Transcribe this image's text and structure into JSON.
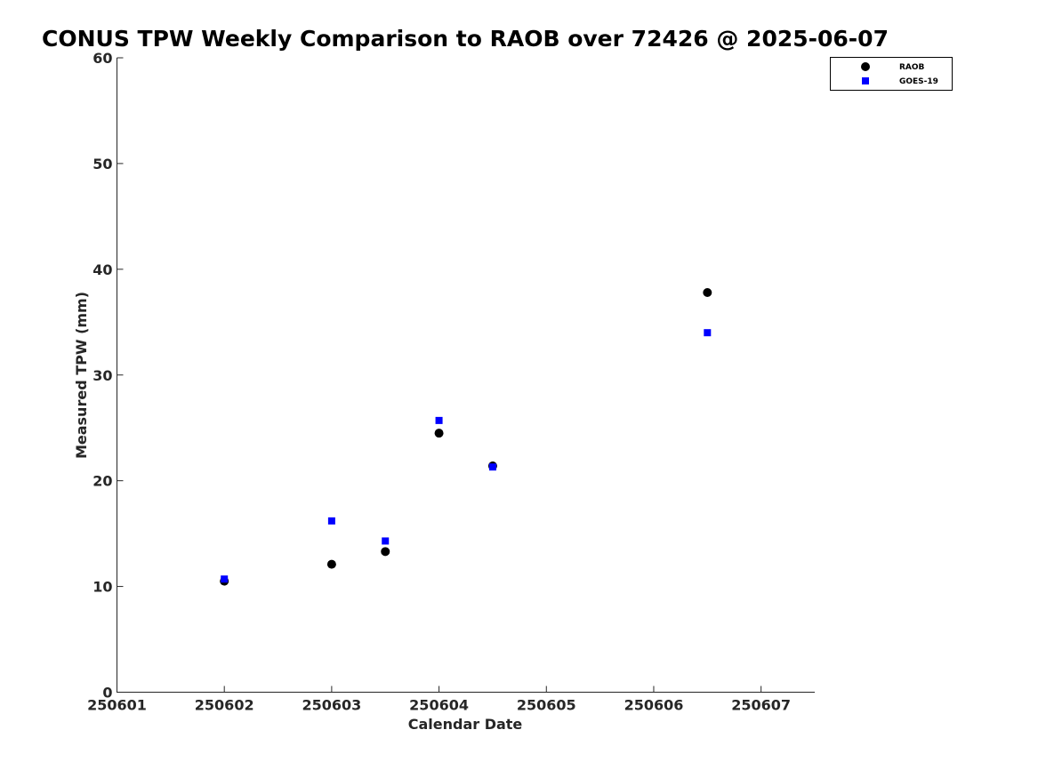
{
  "chart_data": {
    "type": "scatter",
    "title": "CONUS TPW Weekly Comparison to RAOB over 72426 @ 2025-06-07",
    "xlabel": "Calendar Date",
    "ylabel": "Measured TPW (mm)",
    "xlim": [
      1,
      7.5
    ],
    "ylim": [
      0,
      60
    ],
    "x_ticks": [
      1,
      2,
      3,
      4,
      5,
      6,
      7
    ],
    "x_tick_labels": [
      "250601",
      "250602",
      "250603",
      "250604",
      "250605",
      "250606",
      "250607"
    ],
    "y_ticks": [
      0,
      10,
      20,
      30,
      40,
      50,
      60
    ],
    "y_tick_labels": [
      "0",
      "10",
      "20",
      "30",
      "40",
      "50",
      "60"
    ],
    "grid": false,
    "legend_position": "top-right",
    "series": [
      {
        "name": "RAOB",
        "marker": "circle",
        "color": "#000000",
        "points": [
          {
            "x": 2.0,
            "y": 10.5
          },
          {
            "x": 3.0,
            "y": 12.1
          },
          {
            "x": 3.5,
            "y": 13.3
          },
          {
            "x": 4.0,
            "y": 24.5
          },
          {
            "x": 4.5,
            "y": 21.4
          },
          {
            "x": 6.5,
            "y": 37.8
          }
        ]
      },
      {
        "name": "GOES-19",
        "marker": "square",
        "color": "#0000ff",
        "points": [
          {
            "x": 2.0,
            "y": 10.7
          },
          {
            "x": 3.0,
            "y": 16.2
          },
          {
            "x": 3.5,
            "y": 14.3
          },
          {
            "x": 4.0,
            "y": 25.7
          },
          {
            "x": 4.5,
            "y": 21.3
          },
          {
            "x": 6.5,
            "y": 34.0
          }
        ]
      }
    ]
  }
}
